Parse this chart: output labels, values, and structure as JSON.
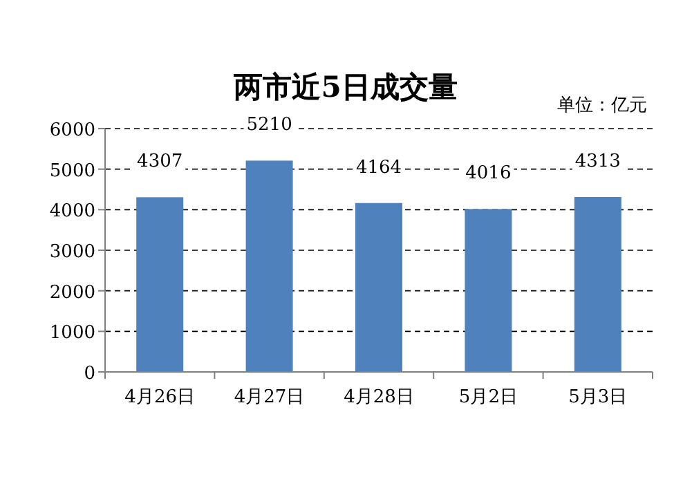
{
  "chart_data": {
    "type": "bar",
    "title": "两市近5日成交量",
    "annotations": [
      "单位：亿元"
    ],
    "categories": [
      "4月26日",
      "4月27日",
      "4月28日",
      "5月2日",
      "5月3日"
    ],
    "values": [
      4307,
      5210,
      4164,
      4016,
      4313
    ],
    "color": "#4f81bd",
    "ylim": [
      0,
      6000
    ],
    "yticks": [
      0,
      1000,
      2000,
      3000,
      4000,
      5000,
      6000
    ],
    "grid": "y",
    "data_labels": true
  }
}
